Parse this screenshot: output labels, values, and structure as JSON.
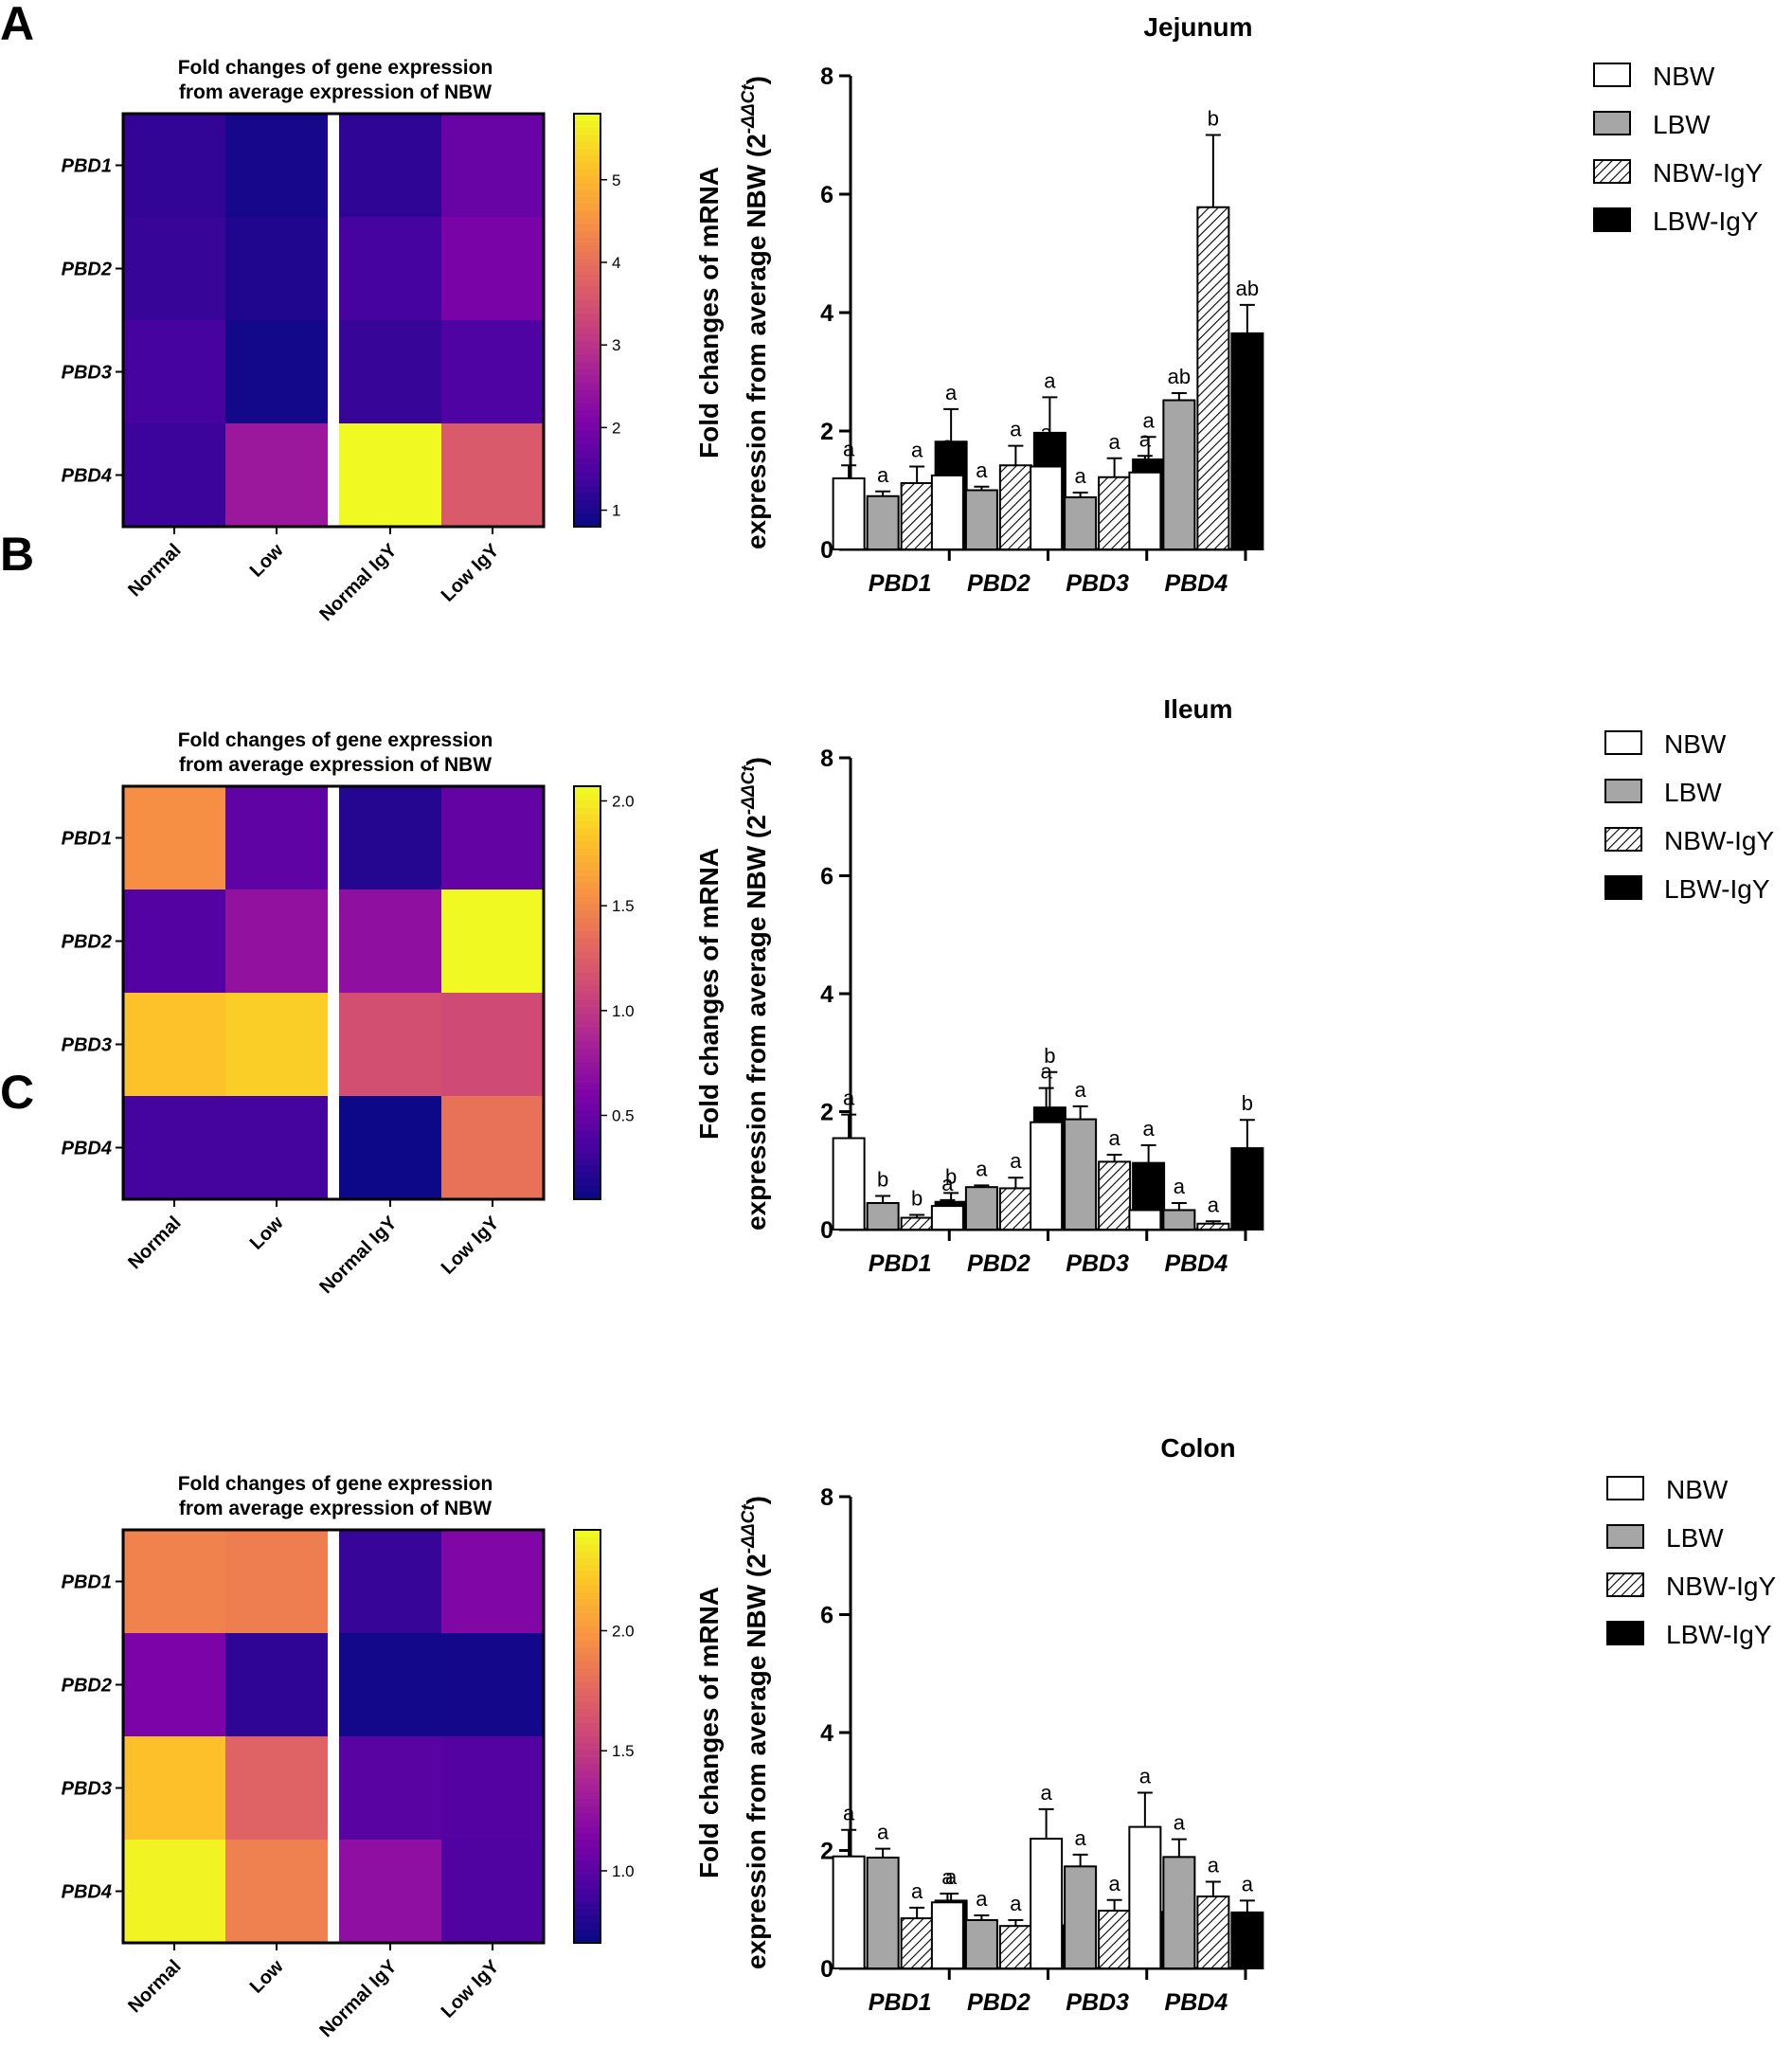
{
  "panels": [
    {
      "letter": "A",
      "region": "Jejunum",
      "heatmap": {
        "title_line1": "Fold changes of gene expression",
        "title_line2": "from average expression of NBW",
        "rows": [
          "PBD1",
          "PBD2",
          "PBD3",
          "PBD4"
        ],
        "cols": [
          "Normal",
          "Low",
          "Normal IgY",
          "Low IgY"
        ],
        "values": [
          [
            1.2,
            0.9,
            1.15,
            1.8
          ],
          [
            1.25,
            1.0,
            1.4,
            2.0
          ],
          [
            1.4,
            0.85,
            1.25,
            1.5
          ],
          [
            1.3,
            2.5,
            5.8,
            3.65
          ]
        ],
        "scale_min": 0.8,
        "scale_max": 5.8,
        "ticks": [
          "1",
          "2",
          "3",
          "4",
          "5"
        ],
        "tick_values": [
          1,
          2,
          3,
          4,
          5
        ]
      },
      "bar_chart": {
        "title": "Jejunum",
        "ylabel_line1": "Fold changes of mRNA",
        "ylabel_line2_main": "expression from average NBW (2",
        "ylabel_sup": "-ΔΔCt",
        "ylabel_close": ")",
        "y_ticks": [
          "0",
          "2",
          "4",
          "6",
          "8"
        ],
        "ylim": [
          0,
          8
        ],
        "genes": [
          "PBD1",
          "PBD2",
          "PBD3",
          "PBD4"
        ],
        "groups": [
          "NBW",
          "LBW",
          "NBW-IgY",
          "LBW-IgY"
        ],
        "values": [
          [
            1.2,
            0.9,
            1.12,
            1.82
          ],
          [
            1.25,
            1.0,
            1.42,
            1.97
          ],
          [
            1.4,
            0.88,
            1.22,
            1.52
          ],
          [
            1.3,
            2.52,
            5.78,
            3.65
          ]
        ],
        "errors": [
          [
            0.22,
            0.08,
            0.28,
            0.55
          ],
          [
            0.25,
            0.06,
            0.33,
            0.6
          ],
          [
            0.3,
            0.08,
            0.32,
            0.38
          ],
          [
            0.28,
            0.12,
            1.22,
            0.48
          ]
        ],
        "sig": [
          [
            "a",
            "a",
            "a",
            "a"
          ],
          [
            "a",
            "a",
            "a",
            "a"
          ],
          [
            "a",
            "a",
            "a",
            "a"
          ],
          [
            "a",
            "ab",
            "b",
            "ab"
          ]
        ]
      }
    },
    {
      "letter": "B",
      "region": "Ileum",
      "heatmap": {
        "title_line1": "Fold changes of gene expression",
        "title_line2": "from average expression of NBW",
        "rows": [
          "PBD1",
          "PBD2",
          "PBD3",
          "PBD4"
        ],
        "cols": [
          "Normal",
          "Low",
          "Normal IgY",
          "Low IgY"
        ],
        "values": [
          [
            1.55,
            0.45,
            0.2,
            0.47
          ],
          [
            0.4,
            0.72,
            0.7,
            2.07
          ],
          [
            1.82,
            1.88,
            1.15,
            1.12
          ],
          [
            0.33,
            0.33,
            0.1,
            1.38
          ]
        ],
        "scale_min": 0.1,
        "scale_max": 2.07,
        "ticks": [
          "0.5",
          "1.0",
          "1.5",
          "2.0"
        ],
        "tick_values": [
          0.5,
          1.0,
          1.5,
          2.0
        ]
      },
      "bar_chart": {
        "title": "Ileum",
        "ylabel_line1": "Fold changes of mRNA",
        "ylabel_line2_main": "expression from average NBW (2",
        "ylabel_sup": "-ΔΔCt",
        "ylabel_close": ")",
        "y_ticks": [
          "0",
          "2",
          "4",
          "6",
          "8"
        ],
        "ylim": [
          0,
          8
        ],
        "genes": [
          "PBD1",
          "PBD2",
          "PBD3",
          "PBD4"
        ],
        "groups": [
          "NBW",
          "LBW",
          "NBW-IgY",
          "LBW-IgY"
        ],
        "values": [
          [
            1.55,
            0.45,
            0.2,
            0.47
          ],
          [
            0.4,
            0.72,
            0.7,
            2.07
          ],
          [
            1.82,
            1.87,
            1.15,
            1.13
          ],
          [
            0.33,
            0.33,
            0.1,
            1.38
          ]
        ],
        "errors": [
          [
            0.4,
            0.12,
            0.05,
            0.15
          ],
          [
            0.1,
            0.03,
            0.18,
            0.6
          ],
          [
            0.58,
            0.22,
            0.12,
            0.3
          ],
          [
            0.1,
            0.12,
            0.04,
            0.48
          ]
        ],
        "sig": [
          [
            "a",
            "b",
            "b",
            "b"
          ],
          [
            "a",
            "a",
            "a",
            "b"
          ],
          [
            "a",
            "a",
            "a",
            "a"
          ],
          [
            "a",
            "a",
            "a",
            "b"
          ]
        ]
      }
    },
    {
      "letter": "C",
      "region": "Colon",
      "heatmap": {
        "title_line1": "Fold changes of gene expression",
        "title_line2": "from average expression of NBW",
        "rows": [
          "PBD1",
          "PBD2",
          "PBD3",
          "PBD4"
        ],
        "cols": [
          "Normal",
          "Low",
          "Normal IgY",
          "Low IgY"
        ],
        "values": [
          [
            1.9,
            1.88,
            0.85,
            1.15
          ],
          [
            1.12,
            0.82,
            0.72,
            0.73
          ],
          [
            2.2,
            1.73,
            0.98,
            0.96
          ],
          [
            2.4,
            1.89,
            1.22,
            0.95
          ]
        ],
        "scale_min": 0.7,
        "scale_max": 2.42,
        "ticks": [
          "1.0",
          "1.5",
          "2.0"
        ],
        "tick_values": [
          1.0,
          1.5,
          2.0
        ]
      },
      "bar_chart": {
        "title": "Colon",
        "ylabel_line1": "Fold changes of mRNA",
        "ylabel_line2_main": "expression from average NBW (2",
        "ylabel_sup": "-ΔΔCt",
        "ylabel_close": ")",
        "y_ticks": [
          "0",
          "2",
          "4",
          "6",
          "8"
        ],
        "ylim": [
          0,
          8
        ],
        "genes": [
          "PBD1",
          "PBD2",
          "PBD3",
          "PBD4"
        ],
        "groups": [
          "NBW",
          "LBW",
          "NBW-IgY",
          "LBW-IgY"
        ],
        "values": [
          [
            1.9,
            1.88,
            0.85,
            1.15
          ],
          [
            1.12,
            0.82,
            0.72,
            0.73
          ],
          [
            2.2,
            1.73,
            0.98,
            0.96
          ],
          [
            2.4,
            1.89,
            1.22,
            0.95
          ]
        ],
        "errors": [
          [
            0.45,
            0.15,
            0.18,
            0.12
          ],
          [
            0.15,
            0.08,
            0.1,
            0.07
          ],
          [
            0.5,
            0.2,
            0.18,
            0.08
          ],
          [
            0.58,
            0.3,
            0.25,
            0.2
          ]
        ],
        "sig": [
          [
            "a",
            "a",
            "a",
            "a"
          ],
          [
            "a",
            "a",
            "a",
            "a"
          ],
          [
            "a",
            "a",
            "a",
            "a"
          ],
          [
            "a",
            "a",
            "a",
            "a"
          ]
        ]
      }
    }
  ],
  "legend": [
    "NBW",
    "LBW",
    "NBW-IgY",
    "LBW-IgY"
  ],
  "colors": {
    "NBW": "#ffffff",
    "LBW": "#a6a6a6",
    "LBW-IgY": "#000000",
    "hatch": "#000000",
    "plasma_low": "#0d0887",
    "plasma_high": "#f0f921"
  },
  "chart_data": [
    {
      "type": "heatmap",
      "title": "Fold changes of gene expression from average expression of NBW",
      "rows": [
        "PBD1",
        "PBD2",
        "PBD3",
        "PBD4"
      ],
      "cols": [
        "Normal",
        "Low",
        "Normal IgY",
        "Low IgY"
      ],
      "values": [
        [
          1.2,
          0.9,
          1.15,
          1.8
        ],
        [
          1.25,
          1.0,
          1.4,
          2.0
        ],
        [
          1.4,
          0.85,
          1.25,
          1.5
        ],
        [
          1.3,
          2.5,
          5.8,
          3.65
        ]
      ],
      "colorbar_ticks": [
        1,
        2,
        3,
        4,
        5
      ]
    },
    {
      "type": "bar",
      "title": "Jejunum",
      "categories": [
        "PBD1",
        "PBD2",
        "PBD3",
        "PBD4"
      ],
      "series": [
        {
          "name": "NBW",
          "values": [
            1.2,
            1.25,
            1.4,
            1.3
          ]
        },
        {
          "name": "LBW",
          "values": [
            0.9,
            1.0,
            0.88,
            2.52
          ]
        },
        {
          "name": "NBW-IgY",
          "values": [
            1.12,
            1.42,
            1.22,
            5.78
          ]
        },
        {
          "name": "LBW-IgY",
          "values": [
            1.82,
            1.97,
            1.52,
            3.65
          ]
        }
      ],
      "ylabel": "Fold changes of mRNA expression from average NBW (2-ΔΔCt)",
      "ylim": [
        0,
        8
      ]
    },
    {
      "type": "heatmap",
      "title": "Fold changes of gene expression from average expression of NBW",
      "rows": [
        "PBD1",
        "PBD2",
        "PBD3",
        "PBD4"
      ],
      "cols": [
        "Normal",
        "Low",
        "Normal IgY",
        "Low IgY"
      ],
      "values": [
        [
          1.55,
          0.45,
          0.2,
          0.47
        ],
        [
          0.4,
          0.72,
          0.7,
          2.07
        ],
        [
          1.82,
          1.88,
          1.15,
          1.12
        ],
        [
          0.33,
          0.33,
          0.1,
          1.38
        ]
      ],
      "colorbar_ticks": [
        0.5,
        1.0,
        1.5,
        2.0
      ]
    },
    {
      "type": "bar",
      "title": "Ileum",
      "categories": [
        "PBD1",
        "PBD2",
        "PBD3",
        "PBD4"
      ],
      "series": [
        {
          "name": "NBW",
          "values": [
            1.55,
            0.4,
            1.82,
            0.33
          ]
        },
        {
          "name": "LBW",
          "values": [
            0.45,
            0.72,
            1.87,
            0.33
          ]
        },
        {
          "name": "NBW-IgY",
          "values": [
            0.2,
            0.7,
            1.15,
            0.1
          ]
        },
        {
          "name": "LBW-IgY",
          "values": [
            0.47,
            2.07,
            1.13,
            1.38
          ]
        }
      ],
      "ylabel": "Fold changes of mRNA expression from average NBW (2-ΔΔCt)",
      "ylim": [
        0,
        8
      ]
    },
    {
      "type": "heatmap",
      "title": "Fold changes of gene expression from average expression of NBW",
      "rows": [
        "PBD1",
        "PBD2",
        "PBD3",
        "PBD4"
      ],
      "cols": [
        "Normal",
        "Low",
        "Normal IgY",
        "Low IgY"
      ],
      "values": [
        [
          1.9,
          1.88,
          0.85,
          1.15
        ],
        [
          1.12,
          0.82,
          0.72,
          0.73
        ],
        [
          2.2,
          1.73,
          0.98,
          0.96
        ],
        [
          2.4,
          1.89,
          1.22,
          0.95
        ]
      ],
      "colorbar_ticks": [
        1.0,
        1.5,
        2.0
      ]
    },
    {
      "type": "bar",
      "title": "Colon",
      "categories": [
        "PBD1",
        "PBD2",
        "PBD3",
        "PBD4"
      ],
      "series": [
        {
          "name": "NBW",
          "values": [
            1.9,
            1.12,
            2.2,
            2.4
          ]
        },
        {
          "name": "LBW",
          "values": [
            1.88,
            0.82,
            1.73,
            1.89
          ]
        },
        {
          "name": "NBW-IgY",
          "values": [
            0.85,
            0.72,
            0.98,
            1.22
          ]
        },
        {
          "name": "LBW-IgY",
          "values": [
            1.15,
            0.73,
            0.96,
            0.95
          ]
        }
      ],
      "ylabel": "Fold changes of mRNA expression from average NBW (2-ΔΔCt)",
      "ylim": [
        0,
        8
      ]
    }
  ]
}
